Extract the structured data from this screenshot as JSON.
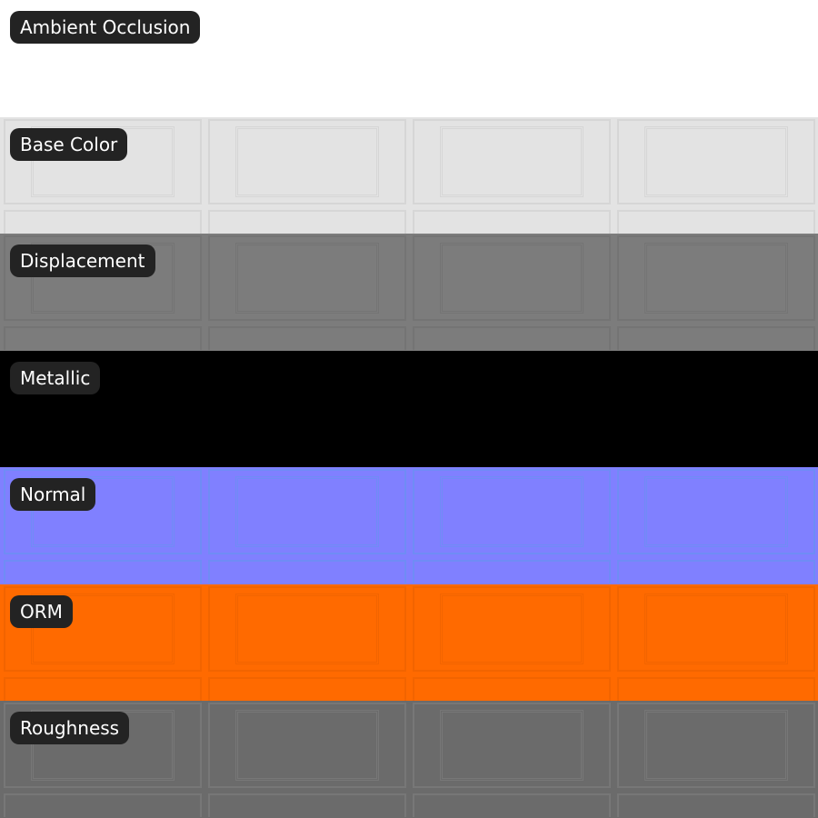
{
  "maps": [
    {
      "label": "Ambient Occlusion",
      "color": "#ffffff",
      "line": "#ffffff",
      "pattern": false
    },
    {
      "label": "Base Color",
      "color": "#e3e3e3",
      "line": "#d6d6d6",
      "pattern": true
    },
    {
      "label": "Displacement",
      "color": "#7c7c7c",
      "line": "#747474",
      "pattern": true
    },
    {
      "label": "Metallic",
      "color": "#000000",
      "line": "#000000",
      "pattern": false
    },
    {
      "label": "Normal",
      "color": "#8080ff",
      "line": "#6f8cf5",
      "pattern": true
    },
    {
      "label": "ORM",
      "color": "#ff6a00",
      "line": "#f26400",
      "pattern": true
    },
    {
      "label": "Roughness",
      "color": "#6b6b6b",
      "line": "#777777",
      "pattern": true
    }
  ]
}
